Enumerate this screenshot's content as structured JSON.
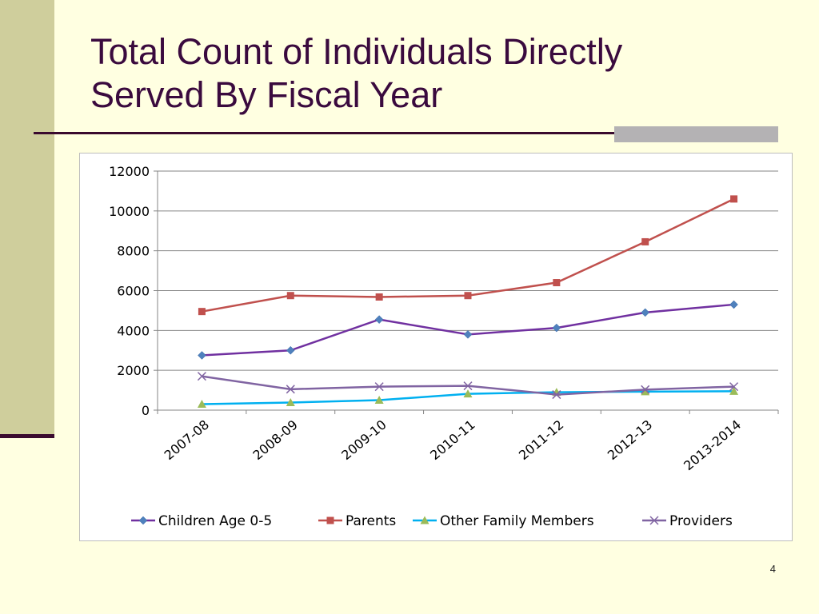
{
  "slide": {
    "title_line1": "Total Count of Individuals Directly",
    "title_line2": "Served By Fiscal Year",
    "page_number": "4",
    "colors": {
      "background": "#FFFFE1",
      "sidebar": "#CFCE9C",
      "title_text": "#3A0A3E",
      "rule": "#3A0A2E",
      "accent_block": "#B4B2B4"
    }
  },
  "chart_data": {
    "type": "line",
    "title": "",
    "xlabel": "",
    "ylabel": "",
    "categories": [
      "2007-08",
      "2008-09",
      "2009-10",
      "2010-11",
      "2011-12",
      "2012-13",
      "2013-2014"
    ],
    "ylim": [
      0,
      12000
    ],
    "yticks": [
      "0",
      "2000",
      "4000",
      "6000",
      "8000",
      "10000",
      "12000"
    ],
    "grid": "horizontal",
    "legend_position": "bottom",
    "series": [
      {
        "name": "Children Age 0-5",
        "color": "#7030A0",
        "marker": "diamond",
        "values": [
          2750,
          3000,
          4550,
          3800,
          4130,
          4900,
          5300
        ]
      },
      {
        "name": "Parents",
        "color": "#C0504D",
        "marker": "square",
        "values": [
          4950,
          5750,
          5680,
          5750,
          6400,
          8450,
          10600
        ]
      },
      {
        "name": "Other Family Members",
        "color": "#00B0F0",
        "marker": "triangle",
        "marker_color": "#9BBB59",
        "values": [
          300,
          380,
          500,
          820,
          900,
          930,
          950
        ]
      },
      {
        "name": "Providers",
        "color": "#8064A2",
        "marker": "x",
        "values": [
          1700,
          1050,
          1180,
          1220,
          780,
          1030,
          1180
        ]
      }
    ]
  }
}
